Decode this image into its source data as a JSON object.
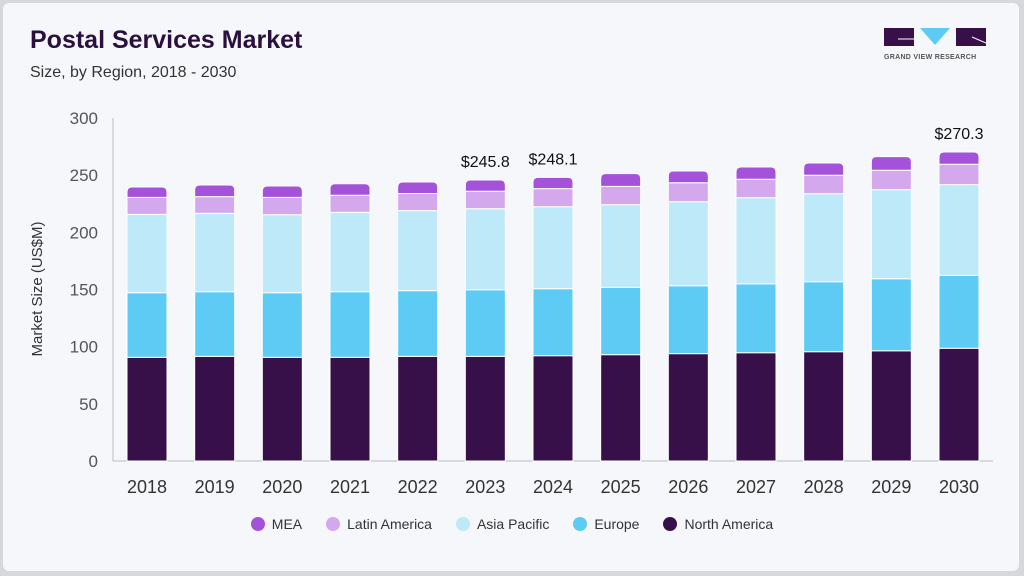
{
  "header": {
    "title": "Postal Services Market",
    "subtitle": "Size, by Region, 2018 - 2030"
  },
  "logo": {
    "text": "GRAND VIEW RESEARCH"
  },
  "chart_data": {
    "type": "bar",
    "stacked": true,
    "title": "Postal Services Market",
    "subtitle": "Size, by Region, 2018 - 2030",
    "xlabel": "",
    "ylabel": "Market Size (US$M)",
    "ylim": [
      0,
      300
    ],
    "yticks": [
      0,
      50,
      100,
      150,
      200,
      250,
      300
    ],
    "grid": false,
    "legend_position": "bottom",
    "categories": [
      "2018",
      "2019",
      "2020",
      "2021",
      "2022",
      "2023",
      "2024",
      "2025",
      "2026",
      "2027",
      "2028",
      "2029",
      "2030"
    ],
    "series": [
      {
        "name": "North America",
        "color": "#37104a",
        "values": [
          90.7,
          91.5,
          90.7,
          90.7,
          91.5,
          91.5,
          92.1,
          93.0,
          93.9,
          94.7,
          95.6,
          96.4,
          98.6
        ]
      },
      {
        "name": "Europe",
        "color": "#5ecbf4",
        "values": [
          56.5,
          56.6,
          56.5,
          57.4,
          57.5,
          58.3,
          58.6,
          58.9,
          59.4,
          60.3,
          61.2,
          63.0,
          63.8
        ]
      },
      {
        "name": "Asia Pacific",
        "color": "#bde9f9",
        "values": [
          68.5,
          68.5,
          68.2,
          69.4,
          70.0,
          70.9,
          71.7,
          72.3,
          73.5,
          75.3,
          77.0,
          77.9,
          79.3
        ]
      },
      {
        "name": "Latin America",
        "color": "#d4a8ec",
        "values": [
          14.9,
          14.6,
          15.2,
          14.9,
          15.0,
          15.2,
          15.8,
          16.0,
          16.6,
          16.1,
          16.1,
          17.0,
          17.8
        ]
      },
      {
        "name": "MEA",
        "color": "#a352d9",
        "values": [
          9.0,
          10.2,
          9.9,
          10.1,
          10.0,
          9.9,
          9.9,
          11.1,
          10.2,
          10.7,
          10.7,
          11.9,
          10.8
        ]
      }
    ],
    "legend_order": [
      "MEA",
      "Latin America",
      "Asia Pacific",
      "Europe",
      "North America"
    ],
    "annotations": [
      {
        "category": "2023",
        "label": "$245.8"
      },
      {
        "category": "2024",
        "label": "$248.1"
      },
      {
        "category": "2030",
        "label": "$270.3"
      }
    ]
  }
}
